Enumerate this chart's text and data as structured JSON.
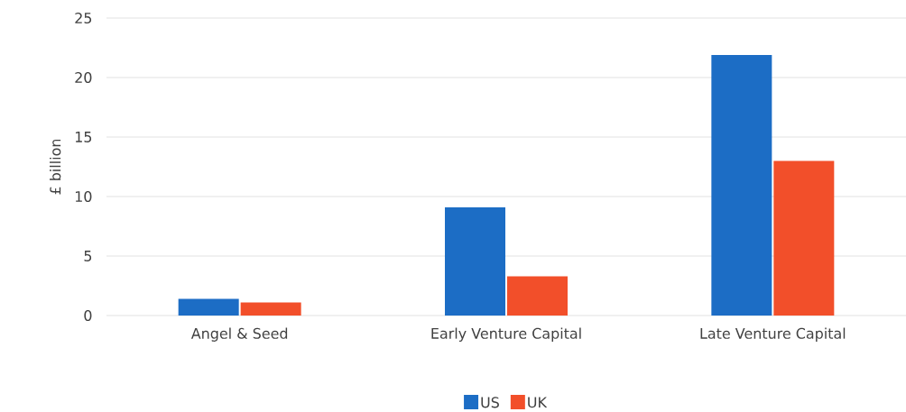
{
  "chart_data": {
    "type": "bar",
    "ylabel": "£ billion",
    "categories": [
      "Angel & Seed",
      "Early Venture Capital",
      "Late Venture Capital"
    ],
    "series": [
      {
        "name": "US",
        "color": "#1c6dc5",
        "values": [
          1.4,
          9.1,
          21.9
        ]
      },
      {
        "name": "UK",
        "color": "#f24f2a",
        "values": [
          1.1,
          3.3,
          13.0
        ]
      }
    ],
    "ylim": [
      0,
      25
    ],
    "yticks": [
      0,
      5,
      10,
      15,
      20,
      25
    ],
    "grid": "y",
    "legend": "bottom"
  }
}
